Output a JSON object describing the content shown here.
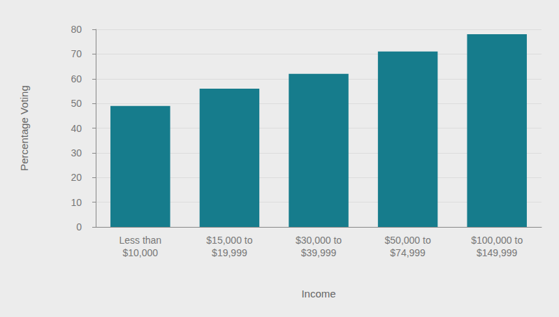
{
  "chart_data": {
    "type": "bar",
    "categories": [
      "Less than\n$10,000",
      "$15,000 to\n$19,999",
      "$30,000 to\n$39,999",
      "$50,000 to\n$74,999",
      "$100,000 to\n$149,999"
    ],
    "values": [
      49,
      56,
      62,
      71,
      78
    ],
    "color": "#167c8c",
    "x_label": "Income",
    "y_label": "Percentage Voting",
    "ylim": [
      0,
      80
    ],
    "yticks": [
      0,
      10,
      20,
      30,
      40,
      50,
      60,
      70,
      80
    ],
    "grid": true
  }
}
